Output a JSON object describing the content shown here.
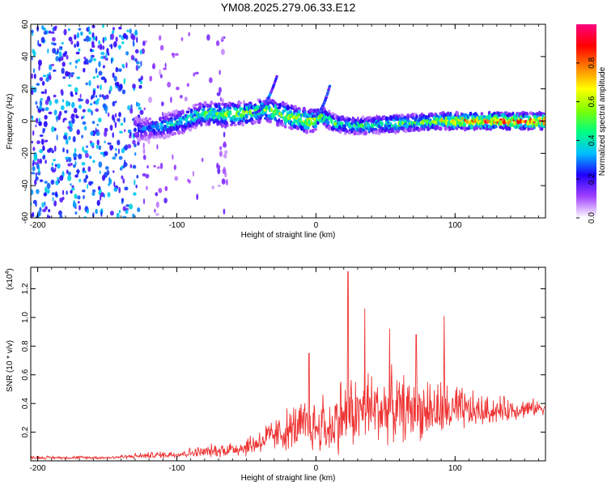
{
  "title": "YM08.2025.279.06.33.E12",
  "chart_data": [
    {
      "type": "heatmap",
      "name": "spectrogram",
      "xlabel": "Height of straight line (km)",
      "ylabel": "Frequency (Hz)",
      "xlim": [
        -205,
        165
      ],
      "ylim": [
        -60,
        60
      ],
      "xticks": [
        -200,
        -100,
        0,
        100
      ],
      "yticks": [
        60,
        40,
        20,
        0,
        -20,
        -40,
        -60
      ],
      "colorbar": {
        "label": "Normalized spectral amplitude",
        "range": [
          0.0,
          1.0
        ],
        "ticks": [
          0.0,
          0.2,
          0.4,
          0.6,
          0.8
        ],
        "tick_labels": [
          "0.0",
          "0.2",
          "0.4",
          "0.6",
          "0.8"
        ],
        "colors": [
          "#ffffff",
          "#a040ff",
          "#2000ff",
          "#00c0ff",
          "#00ff80",
          "#80ff00",
          "#ffff00",
          "#ff8000",
          "#ff0000",
          "#ff0080"
        ]
      },
      "ridge": [
        {
          "x": -125,
          "f": -5
        },
        {
          "x": -110,
          "f": -3
        },
        {
          "x": -95,
          "f": 0
        },
        {
          "x": -80,
          "f": 5
        },
        {
          "x": -65,
          "f": 4
        },
        {
          "x": -50,
          "f": 5
        },
        {
          "x": -35,
          "f": 7
        },
        {
          "x": -20,
          "f": 3
        },
        {
          "x": -5,
          "f": 0
        },
        {
          "x": 5,
          "f": 3
        },
        {
          "x": 15,
          "f": -2
        },
        {
          "x": 30,
          "f": -3
        },
        {
          "x": 50,
          "f": -2
        },
        {
          "x": 70,
          "f": -1
        },
        {
          "x": 90,
          "f": 0
        },
        {
          "x": 110,
          "f": 0
        },
        {
          "x": 130,
          "f": 0
        },
        {
          "x": 160,
          "f": 0
        }
      ],
      "ridge_amplitude": [
        {
          "x": -125,
          "a": 0.3
        },
        {
          "x": -100,
          "a": 0.45
        },
        {
          "x": -80,
          "a": 0.55
        },
        {
          "x": -60,
          "a": 0.65
        },
        {
          "x": -40,
          "a": 0.6
        },
        {
          "x": -20,
          "a": 0.7
        },
        {
          "x": 0,
          "a": 0.75
        },
        {
          "x": 20,
          "a": 0.5
        },
        {
          "x": 50,
          "a": 0.55
        },
        {
          "x": 80,
          "a": 0.6
        },
        {
          "x": 100,
          "a": 0.85
        },
        {
          "x": 130,
          "a": 0.95
        },
        {
          "x": 160,
          "a": 0.95
        }
      ]
    },
    {
      "type": "line",
      "name": "snr",
      "xlabel": "Height of straight line (km)",
      "ylabel": "SNR (10 * v/v)",
      "multiplier_label": "(x10",
      "multiplier_exponent": "4",
      "multiplier_close": ")",
      "xlim": [
        -205,
        165
      ],
      "ylim": [
        0,
        1.35
      ],
      "xticks": [
        -200,
        -100,
        0,
        100
      ],
      "yticks": [
        0.2,
        0.4,
        0.6,
        0.8,
        1.0,
        1.2
      ],
      "ytick_labels": [
        "0.2",
        "0.4",
        "0.6",
        "0.8",
        "1.0",
        "1.2"
      ],
      "color": "#ee3333",
      "envelope": [
        {
          "x": -205,
          "base": 0.02,
          "amp": 0.02
        },
        {
          "x": -150,
          "base": 0.02,
          "amp": 0.02
        },
        {
          "x": -100,
          "base": 0.04,
          "amp": 0.05
        },
        {
          "x": -70,
          "base": 0.06,
          "amp": 0.08
        },
        {
          "x": -50,
          "base": 0.08,
          "amp": 0.12
        },
        {
          "x": -30,
          "base": 0.15,
          "amp": 0.2
        },
        {
          "x": -10,
          "base": 0.2,
          "amp": 0.3
        },
        {
          "x": 10,
          "base": 0.18,
          "amp": 0.35
        },
        {
          "x": 20,
          "base": 0.25,
          "amp": 0.45
        },
        {
          "x": 40,
          "base": 0.3,
          "amp": 0.45
        },
        {
          "x": 60,
          "base": 0.3,
          "amp": 0.4
        },
        {
          "x": 90,
          "base": 0.3,
          "amp": 0.35
        },
        {
          "x": 120,
          "base": 0.32,
          "amp": 0.18
        },
        {
          "x": 165,
          "base": 0.36,
          "amp": 0.08
        }
      ],
      "peaks": [
        {
          "x": -5,
          "y": 0.75
        },
        {
          "x": 23,
          "y": 1.32
        },
        {
          "x": 35,
          "y": 1.06
        },
        {
          "x": 53,
          "y": 0.92
        },
        {
          "x": 72,
          "y": 0.88
        },
        {
          "x": 92,
          "y": 1.01
        },
        {
          "x": 18,
          "y": 0.55
        },
        {
          "x": 5,
          "y": 0.46
        }
      ]
    }
  ]
}
